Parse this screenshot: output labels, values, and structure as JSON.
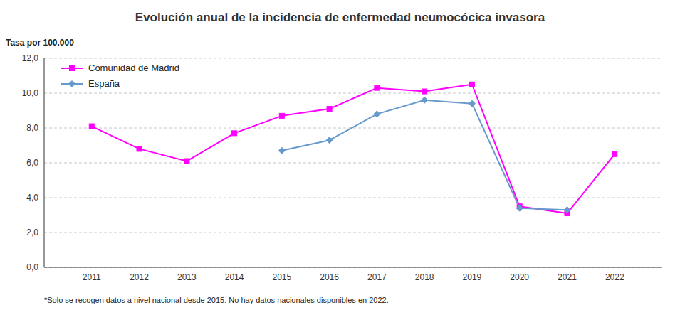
{
  "chart_data": {
    "type": "line",
    "title": "Evolución anual de la incidencia de enfermedad neumocócica invasora",
    "y_label": "Tasa por 100.000",
    "annotations": [
      "*Solo se recogen datos a nivel nacional desde 2015. No hay datos nacionales disponibles en 2022."
    ],
    "x": [
      2011,
      2012,
      2013,
      2014,
      2015,
      2016,
      2017,
      2018,
      2019,
      2020,
      2021,
      2022
    ],
    "series": [
      {
        "name": "Comunidad de Madrid",
        "color": "#FF00FF",
        "marker": "square",
        "values": [
          8.1,
          6.8,
          6.1,
          7.7,
          8.7,
          9.1,
          10.3,
          10.1,
          10.5,
          3.5,
          3.1,
          6.5
        ]
      },
      {
        "name": "España",
        "color": "#6699CC",
        "marker": "diamond",
        "values": [
          null,
          null,
          null,
          null,
          6.7,
          7.3,
          8.8,
          9.6,
          9.4,
          3.4,
          3.3,
          null
        ]
      }
    ],
    "xlim": [
      2010,
      2023
    ],
    "xticks": [
      2011,
      2012,
      2013,
      2014,
      2015,
      2016,
      2017,
      2018,
      2019,
      2020,
      2021,
      2022
    ],
    "ylim": [
      0,
      12
    ],
    "yticks": [
      {
        "value": 0,
        "label": "0,0"
      },
      {
        "value": 2,
        "label": "2,0"
      },
      {
        "value": 4,
        "label": "4,0"
      },
      {
        "value": 6,
        "label": "6,0"
      },
      {
        "value": 8,
        "label": "8,0"
      },
      {
        "value": 10,
        "label": "10,0"
      },
      {
        "value": 12,
        "label": "12,0"
      }
    ],
    "grid": true,
    "legend": "upper left"
  }
}
